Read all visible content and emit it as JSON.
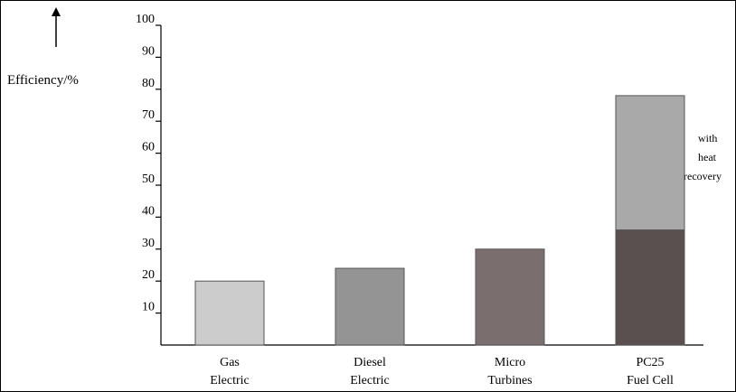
{
  "chart_data": {
    "type": "bar",
    "ylabel": "Efficiency/%",
    "ylim": [
      0,
      100
    ],
    "yticks": [
      "10",
      "20",
      "30",
      "40",
      "50",
      "60",
      "70",
      "80",
      "90",
      "100"
    ],
    "categories": [
      [
        "Gas",
        "Electric"
      ],
      [
        "Diesel",
        "Electric"
      ],
      [
        "Micro",
        "Turbines"
      ],
      [
        "PC25",
        "Fuel Cell"
      ]
    ],
    "series": [
      {
        "values": [
          20,
          24,
          30,
          36
        ]
      },
      {
        "values": [
          0,
          0,
          0,
          42
        ]
      }
    ],
    "annotation": [
      "with",
      "heat",
      "recovery"
    ],
    "colors": {
      "bars": [
        "#cccccc",
        "#949494",
        "#7a6e6e",
        "#5a5050"
      ],
      "stack_top": "#a9a9a9",
      "bar_stroke": "#555555"
    }
  }
}
